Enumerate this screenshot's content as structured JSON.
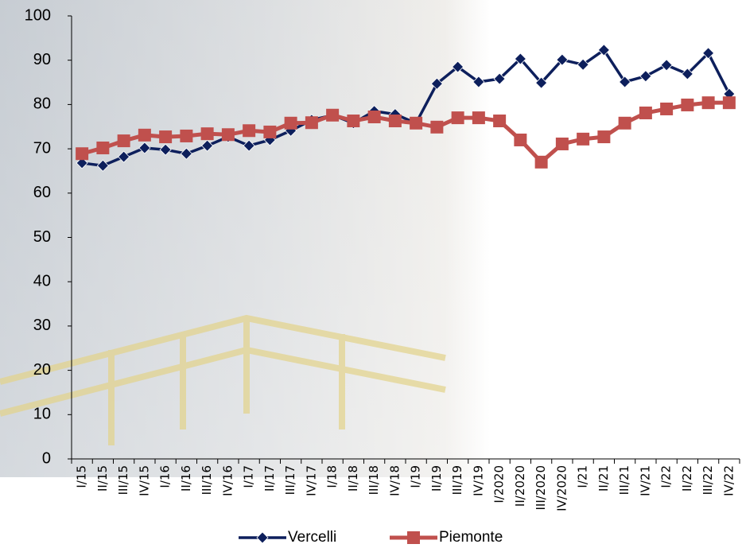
{
  "chart_data": {
    "type": "line",
    "categories": [
      "I/15",
      "II/15",
      "III/15",
      "IV/15",
      "I/16",
      "II/16",
      "III/16",
      "IV/16",
      "I/17",
      "II/17",
      "III/17",
      "IV/17",
      "I/18",
      "II/18",
      "III/18",
      "IV/18",
      "I/19",
      "II/19",
      "III/19",
      "IV/19",
      "I/2020",
      "II/2020",
      "III/2020",
      "IV/2020",
      "I/21",
      "II/21",
      "III/21",
      "IV/21",
      "I/22",
      "II/22",
      "III/22",
      "IV/22"
    ],
    "series": [
      {
        "name": "Vercelli",
        "color": "#0d1f5c",
        "marker": "diamond",
        "values": [
          66.8,
          66.2,
          68.2,
          70.2,
          69.8,
          68.9,
          70.7,
          72.7,
          70.7,
          72.0,
          74.1,
          76.5,
          77.6,
          75.8,
          78.5,
          77.8,
          75.8,
          84.7,
          88.5,
          85.1,
          85.8,
          90.3,
          84.9,
          90.1,
          89.0,
          92.3,
          85.1,
          86.4,
          88.9,
          86.9,
          91.6,
          82.4
        ]
      },
      {
        "name": "Piemonte",
        "color": "#c0504d",
        "marker": "square",
        "values": [
          68.9,
          70.2,
          71.8,
          73.1,
          72.7,
          72.9,
          73.4,
          73.2,
          74.1,
          73.8,
          75.8,
          75.9,
          77.6,
          76.3,
          77.2,
          76.3,
          75.8,
          74.9,
          77.0,
          77.0,
          76.3,
          72.0,
          67.0,
          71.1,
          72.2,
          72.7,
          75.8,
          78.1,
          79.0,
          79.9,
          80.4,
          80.4
        ]
      }
    ],
    "ylim": [
      0,
      100
    ],
    "yticks": [
      0,
      10,
      20,
      30,
      40,
      50,
      60,
      70,
      80,
      90,
      100
    ],
    "legend": "bottom"
  }
}
